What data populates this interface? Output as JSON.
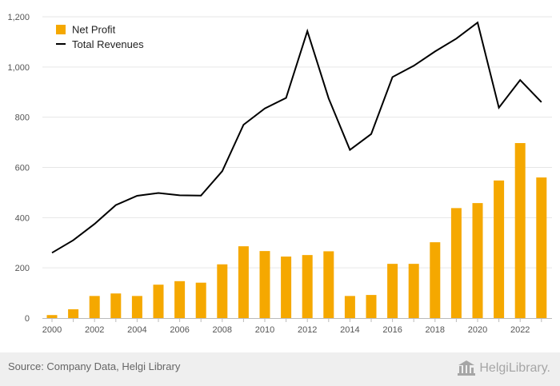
{
  "chart_data": {
    "type": "bar+line",
    "x": [
      2000,
      2001,
      2002,
      2003,
      2004,
      2005,
      2006,
      2007,
      2008,
      2009,
      2010,
      2011,
      2012,
      2013,
      2014,
      2015,
      2016,
      2017,
      2018,
      2019,
      2020,
      2021,
      2022,
      2023
    ],
    "x_ticks": [
      "2000",
      "2002",
      "2004",
      "2006",
      "2008",
      "2010",
      "2012",
      "2014",
      "2016",
      "2018",
      "2020",
      "2022"
    ],
    "y_ticks": [
      "0",
      "200",
      "400",
      "600",
      "800",
      "1,000",
      "1,200"
    ],
    "ylim": [
      0,
      1200
    ],
    "grid": true,
    "legend_position": "top-left",
    "series": [
      {
        "name": "Net Profit",
        "type": "bar",
        "color": "#f5a800",
        "values": [
          12,
          35,
          88,
          98,
          88,
          133,
          147,
          141,
          214,
          286,
          267,
          245,
          251,
          266,
          88,
          92,
          216,
          216,
          302,
          438,
          458,
          548,
          697,
          560
        ]
      },
      {
        "name": "Total Revenues",
        "type": "line",
        "color": "#000000",
        "values": [
          260,
          310,
          375,
          450,
          487,
          498,
          489,
          488,
          585,
          770,
          835,
          877,
          1143,
          875,
          670,
          733,
          960,
          1005,
          1062,
          1113,
          1177,
          838,
          948,
          860
        ]
      }
    ]
  },
  "footer": {
    "source": "Source: Company Data, Helgi Library",
    "brand": "HelgiLibrary."
  }
}
